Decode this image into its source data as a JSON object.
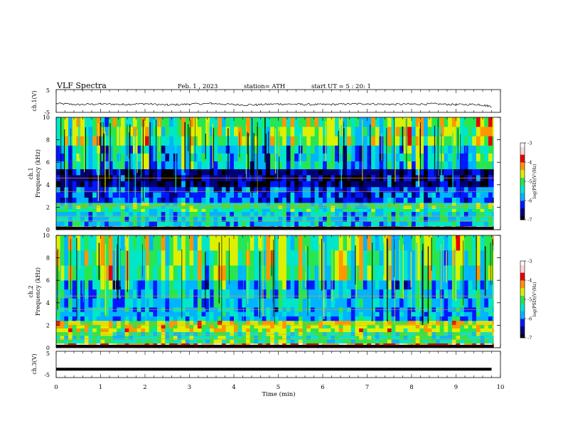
{
  "header": {
    "title": "VLF Spectra",
    "date": "Feb. 1 , 2023",
    "station": "station= ATH",
    "start_ut": "start UT = 5 : 20: 1"
  },
  "chart_data": [
    {
      "type": "line",
      "panel": "ch1-waveform",
      "ylabel": "ch.1(V)",
      "ylim": [
        -5,
        5
      ],
      "yticks": [
        "5",
        "-5"
      ],
      "x": [
        0,
        0.5,
        1,
        1.5,
        2,
        2.5,
        3,
        3.5,
        4,
        4.5,
        5,
        5.5,
        6,
        6.5,
        7,
        7.5,
        8,
        8.5,
        9,
        9.5,
        9.8
      ],
      "values": [
        -1.1,
        -1.6,
        -1.3,
        -1.5,
        -1.2,
        -1.8,
        -1.4,
        -1.1,
        -1.6,
        -1.7,
        -1.3,
        -1.5,
        -1.6,
        -1.4,
        -1.2,
        -1.5,
        -1.4,
        -1.3,
        -1.6,
        -1.5,
        -2.4
      ]
    },
    {
      "type": "heatmap",
      "panel": "ch1-spectrogram",
      "ylabel": "ch.1\nFrequency (kHz)",
      "ylim": [
        0,
        10
      ],
      "yticks": [
        "0",
        "2",
        "4",
        "6",
        "8",
        "10"
      ],
      "xlim": [
        0,
        10
      ],
      "colorbar": {
        "label": "log(PSD)(V²/Hz)",
        "ticks": [
          "-3",
          "-4",
          "-5",
          "-6",
          "-7"
        ],
        "range": [
          -7,
          -3
        ]
      },
      "frequency_bands_khz": [
        {
          "from": 0.0,
          "to": 0.3,
          "level": -3.8
        },
        {
          "from": 0.3,
          "to": 1.6,
          "level": -5.6
        },
        {
          "from": 1.6,
          "to": 2.4,
          "level": -5.2
        },
        {
          "from": 2.4,
          "to": 3.8,
          "level": -6.1
        },
        {
          "from": 3.8,
          "to": 5.4,
          "level": -6.6
        },
        {
          "from": 5.4,
          "to": 7.5,
          "level": -5.6
        },
        {
          "from": 7.5,
          "to": 10.0,
          "level": -4.9
        }
      ]
    },
    {
      "type": "heatmap",
      "panel": "ch2-spectrogram",
      "ylabel": "ch.2\nFrequency (kHz)",
      "ylim": [
        0,
        10
      ],
      "yticks": [
        "0",
        "2",
        "4",
        "6",
        "8",
        "10"
      ],
      "xlim": [
        0,
        10
      ],
      "colorbar": {
        "label": "log(PSD)(V²/Hz)",
        "ticks": [
          "-3",
          "-4",
          "-5",
          "-6",
          "-7"
        ],
        "range": [
          -7,
          -3
        ]
      },
      "frequency_bands_khz": [
        {
          "from": 0.0,
          "to": 0.4,
          "level": -3.9
        },
        {
          "from": 0.4,
          "to": 1.4,
          "level": -5.2
        },
        {
          "from": 1.4,
          "to": 2.4,
          "level": -4.6
        },
        {
          "from": 2.4,
          "to": 3.6,
          "level": -5.7
        },
        {
          "from": 3.6,
          "to": 6.0,
          "level": -5.6
        },
        {
          "from": 6.0,
          "to": 10.0,
          "level": -5.0
        }
      ]
    },
    {
      "type": "line",
      "panel": "ch3-waveform",
      "ylabel": "ch.3(V)",
      "ylim": [
        -5,
        5
      ],
      "yticks": [
        "5",
        "-5"
      ],
      "xlabel": "Time (min)",
      "xlim": [
        0,
        10
      ],
      "xticks": [
        "0",
        "1",
        "2",
        "3",
        "4",
        "5",
        "6",
        "7",
        "8",
        "9",
        "10"
      ],
      "x": [
        0,
        9.8
      ],
      "values": [
        -1.8,
        -1.8
      ]
    }
  ],
  "colors": {
    "colormap": [
      "#000000",
      "#00007a",
      "#0018ff",
      "#00b4ff",
      "#00e6c8",
      "#28e650",
      "#dcf000",
      "#ff9600",
      "#e80000",
      "#ffd7d7",
      "#ffffff"
    ]
  }
}
